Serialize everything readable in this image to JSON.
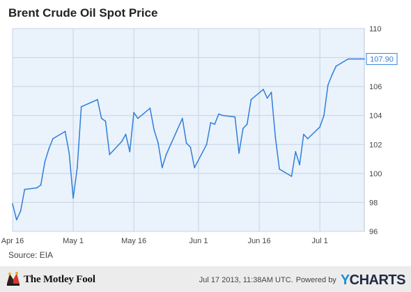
{
  "chart_data": {
    "type": "line",
    "title": "Brent Crude Oil Spot Price",
    "xlabel": "",
    "ylabel": "",
    "x_tick_labels": [
      "Apr 16",
      "May 1",
      "May 16",
      "Jun 1",
      "Jun 16",
      "Jul 1"
    ],
    "x_tick_days": [
      0,
      15,
      30,
      46,
      61,
      76
    ],
    "ylim": [
      96,
      110
    ],
    "y_ticks": [
      96,
      98,
      100,
      102,
      104,
      106,
      108,
      110
    ],
    "y_tick_labels": [
      "96",
      "98",
      "100",
      "102",
      "104",
      "106",
      "108",
      "110"
    ],
    "grid": true,
    "legend": "none",
    "last_value_label": "107.90",
    "series": [
      {
        "color": "#2f7ed8",
        "x": [
          "Apr 16",
          "Apr 17",
          "Apr 18",
          "Apr 19",
          "Apr 22",
          "Apr 23",
          "Apr 24",
          "Apr 25",
          "Apr 26",
          "Apr 29",
          "Apr 30",
          "May 1",
          "May 2",
          "May 3",
          "May 7",
          "May 8",
          "May 9",
          "May 10",
          "May 13",
          "May 14",
          "May 15",
          "May 16",
          "May 17",
          "May 20",
          "May 21",
          "May 22",
          "May 23",
          "May 24",
          "May 28",
          "May 29",
          "May 30",
          "May 31",
          "Jun 3",
          "Jun 4",
          "Jun 5",
          "Jun 6",
          "Jun 7",
          "Jun 10",
          "Jun 11",
          "Jun 12",
          "Jun 13",
          "Jun 14",
          "Jun 17",
          "Jun 18",
          "Jun 19",
          "Jun 20",
          "Jun 21",
          "Jun 24",
          "Jun 25",
          "Jun 26",
          "Jun 27",
          "Jun 28",
          "Jul 1",
          "Jul 2",
          "Jul 3",
          "Jul 4",
          "Jul 5",
          "Jul 8",
          "Jul 9",
          "Jul 10",
          "Jul 11",
          "Jul 12"
        ],
        "values": [
          97.9,
          96.8,
          97.4,
          98.9,
          99.0,
          99.2,
          100.8,
          101.7,
          102.4,
          102.9,
          101.4,
          98.3,
          100.4,
          104.6,
          105.1,
          103.8,
          103.6,
          101.3,
          102.2,
          102.7,
          101.5,
          104.2,
          103.8,
          104.5,
          103.0,
          102.1,
          100.4,
          101.3,
          103.8,
          102.1,
          101.8,
          100.4,
          102.0,
          103.5,
          103.4,
          104.1,
          104.0,
          103.9,
          101.4,
          103.1,
          103.4,
          105.1,
          105.8,
          105.2,
          105.6,
          102.5,
          100.3,
          99.8,
          101.5,
          100.6,
          102.7,
          102.4,
          103.2,
          104.0,
          106.1,
          106.8,
          107.4,
          107.9,
          107.9,
          107.9,
          107.9,
          107.9
        ]
      }
    ]
  },
  "source": {
    "label": "Source: EIA"
  },
  "footer": {
    "brand": "The Motley Fool",
    "timestamp": "Jul 17 2013, 11:38AM UTC.",
    "powered_by": "Powered by",
    "ycharts_y": "Y",
    "ycharts_rest": "CHARTS"
  },
  "colors": {
    "plot_background": "#eaf2fc",
    "grid": "#c5d3e3",
    "line": "#2f7ed8",
    "label_border": "#2f7ed8"
  }
}
